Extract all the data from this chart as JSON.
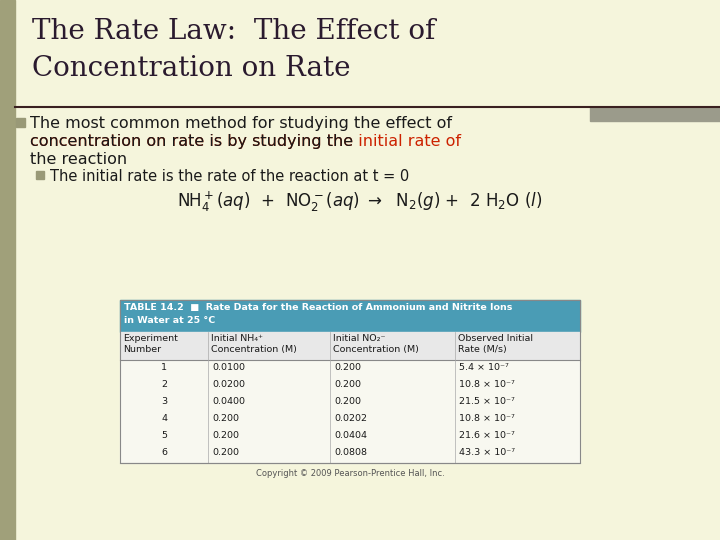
{
  "title_line1": "The Rate Law:  The Effect of",
  "title_line2": "Concentration on Rate",
  "title_color": "#2a1a2e",
  "title_fontsize": 20,
  "bg_color": "#f5f5dc",
  "left_bar_color": "#a0a07a",
  "bullet_color": "#999977",
  "highlight_color": "#cc2200",
  "sub_bullet_text": "The initial rate is the rate of the reaction at t = 0",
  "table_header_bg": "#4a9cb5",
  "table_data": [
    [
      "1",
      "0.0100",
      "0.200",
      "5.4 × 10⁻⁷"
    ],
    [
      "2",
      "0.0200",
      "0.200",
      "10.8 × 10⁻⁷"
    ],
    [
      "3",
      "0.0400",
      "0.200",
      "21.5 × 10⁻⁷"
    ],
    [
      "4",
      "0.200",
      "0.0202",
      "10.8 × 10⁻⁷"
    ],
    [
      "5",
      "0.200",
      "0.0404",
      "21.6 × 10⁻⁷"
    ],
    [
      "6",
      "0.200",
      "0.0808",
      "43.3 × 10⁻⁷"
    ]
  ],
  "copyright": "Copyright © 2009 Pearson-Prentice Hall, Inc.",
  "divider_color": "#3a2020",
  "accent_bar_color": "#a0a07a",
  "right_accent_color": "#9b9b8b",
  "text_color": "#1a1a1a"
}
